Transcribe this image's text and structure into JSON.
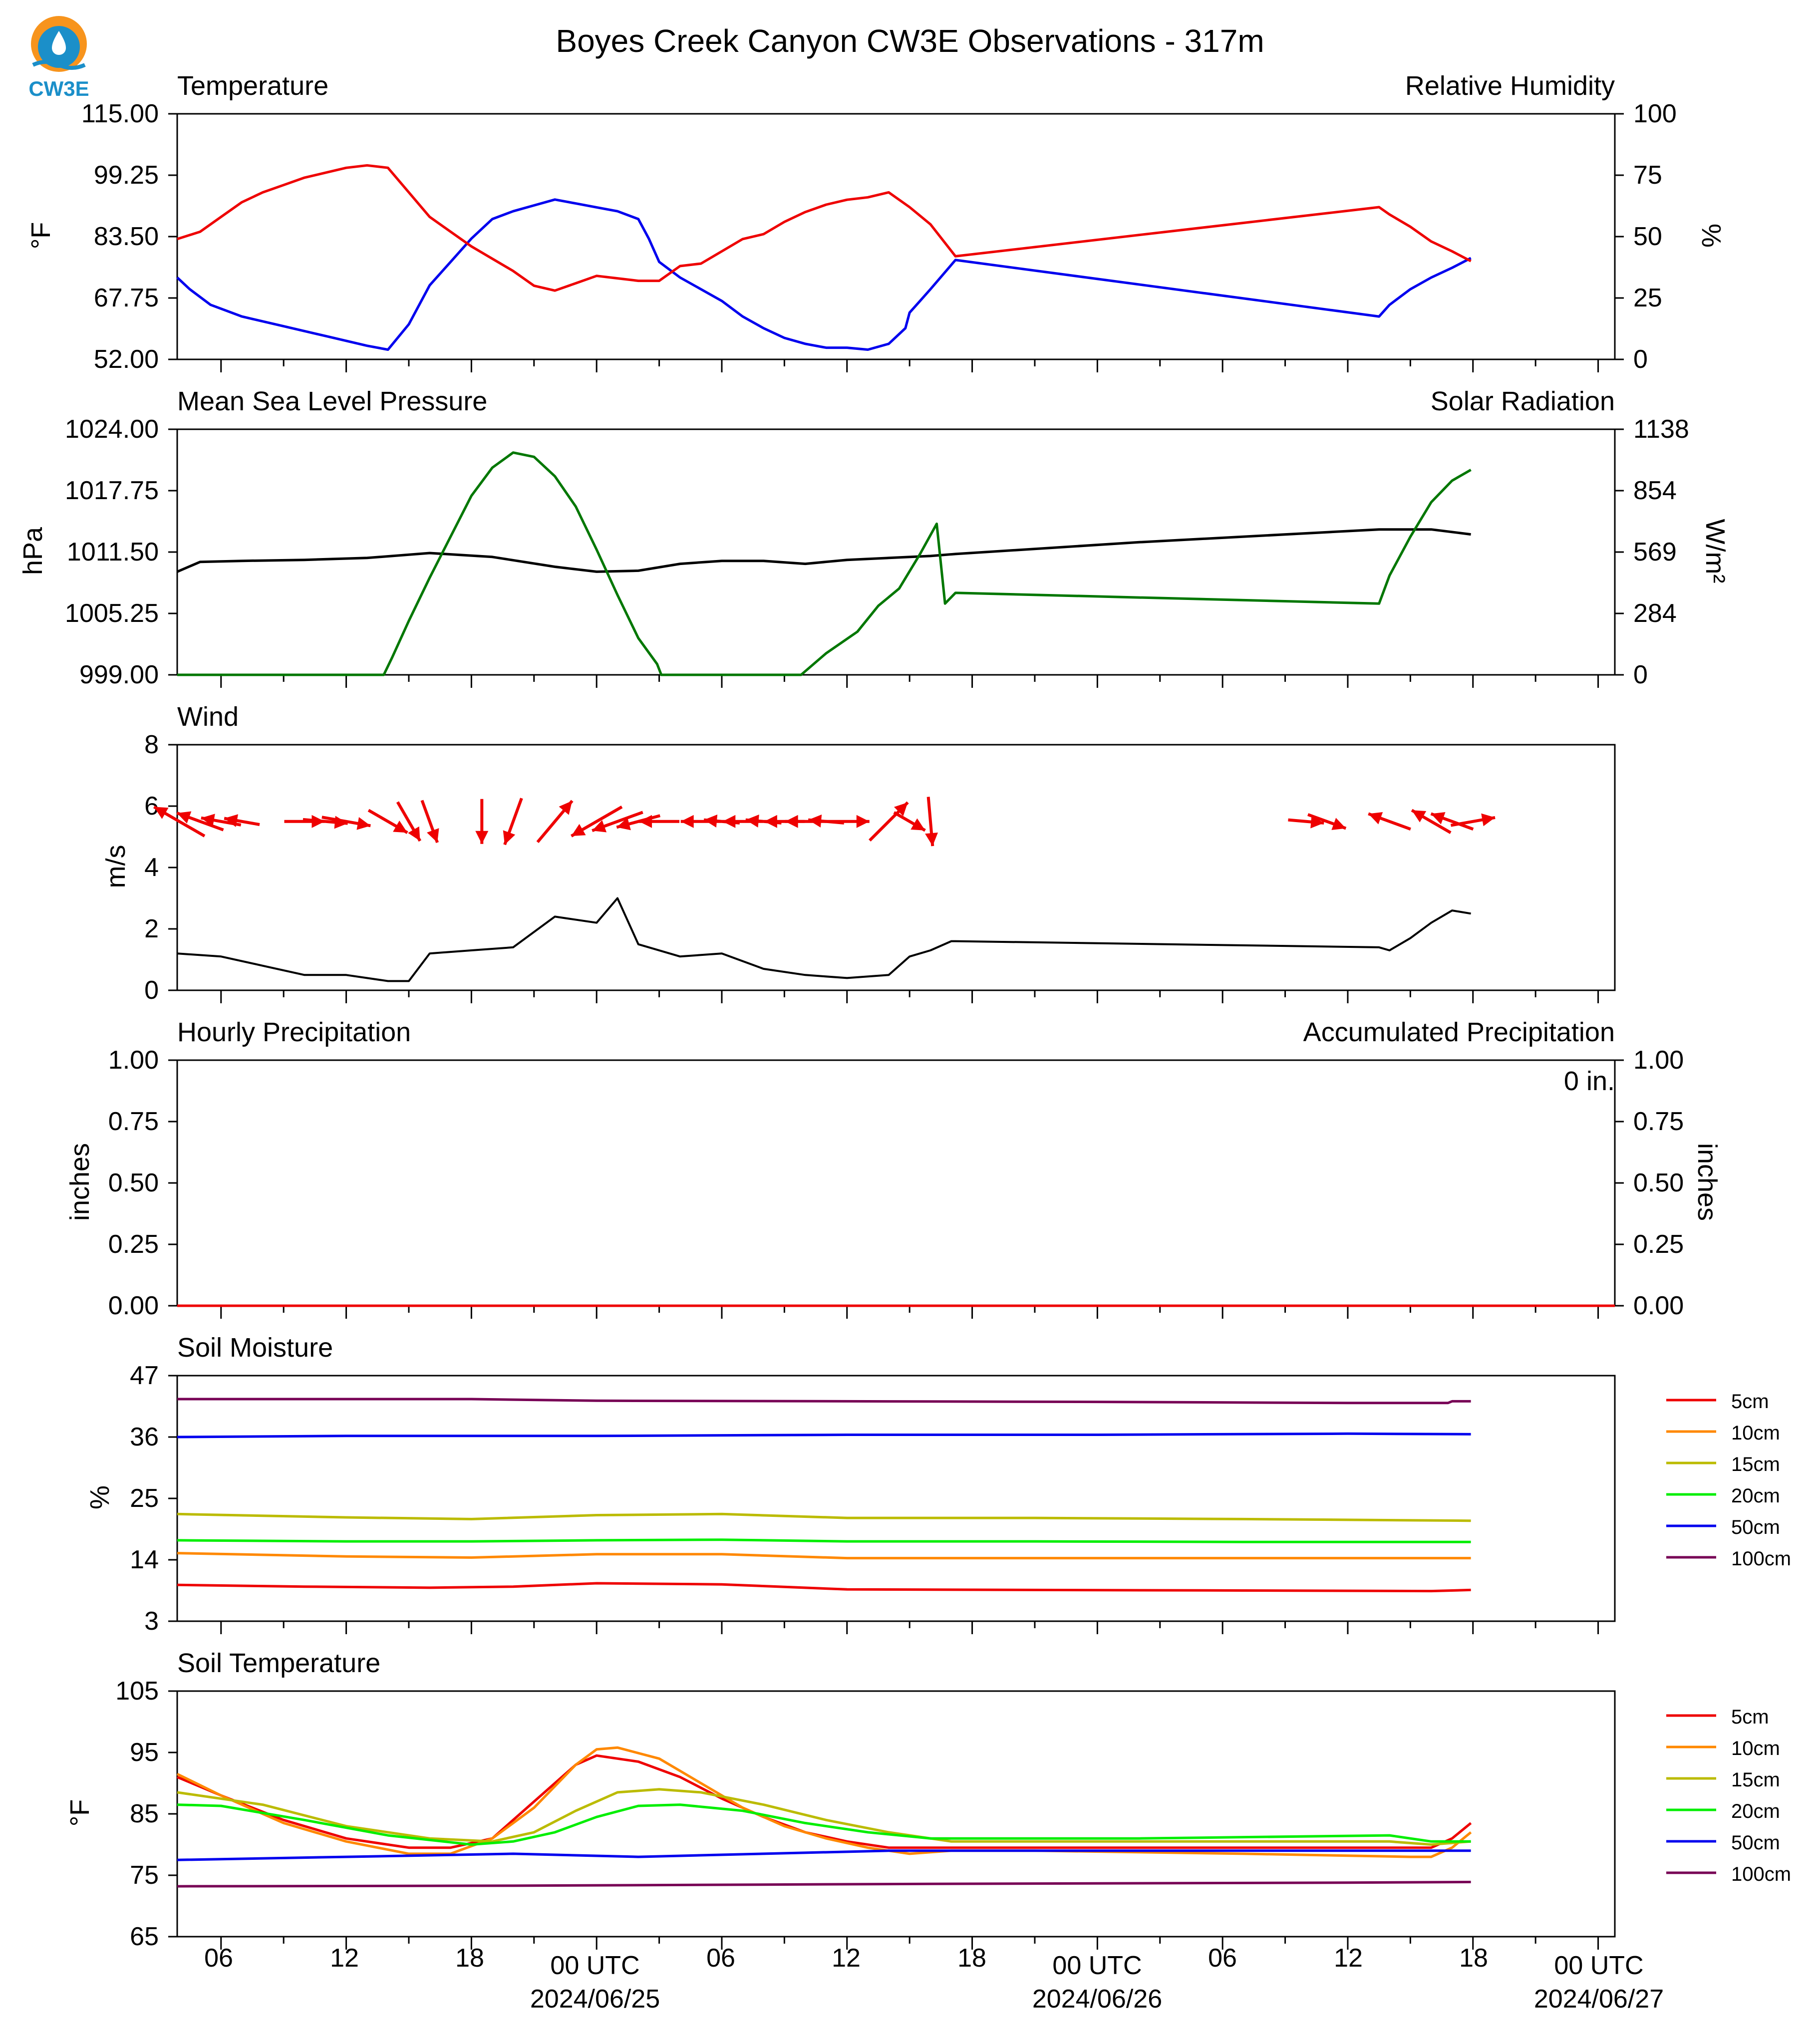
{
  "logo_text": "CW3E",
  "title": "Boyes Creek Canyon CW3E Observations - 317m",
  "colors": {
    "temperature": "#0000ee",
    "humidity": "#ee0000",
    "solar": "#007700",
    "pressure": "#000000",
    "wind": "#000000",
    "wind_arrow": "#ee0000",
    "precip_hourly": "#0000ee",
    "precip_accum": "#ee0000"
  },
  "x_axis": {
    "hour_ticks": [
      "06",
      "12",
      "18",
      "00 UTC",
      "06",
      "12",
      "18",
      "00 UTC",
      "06",
      "12",
      "18",
      "00 UTC"
    ],
    "dates": [
      "2024/06/25",
      "2024/06/26",
      "2024/06/27"
    ],
    "range_hours": [
      3.9,
      72.8
    ]
  },
  "chart_data": [
    {
      "type": "line",
      "name": "temp_rh",
      "left_title": "Temperature",
      "right_title": "Relative Humidity",
      "ylabel": "°F",
      "y2label": "%",
      "ylim": [
        52,
        115
      ],
      "y2lim": [
        0,
        100
      ],
      "yticks": [
        "115.00",
        "99.25",
        "83.50",
        "67.75",
        "52.00"
      ],
      "y2ticks": [
        "100",
        "75",
        "50",
        "25",
        "0"
      ],
      "series": [
        {
          "axis": "left",
          "color": "#0000ee",
          "x": [
            3.9,
            4.5,
            5.5,
            7,
            9,
            11,
            13,
            14,
            15,
            16,
            17,
            18,
            19,
            20,
            21,
            22,
            23,
            24,
            25,
            26,
            26.5,
            27,
            28,
            29,
            30,
            31,
            32,
            33,
            34,
            35,
            36,
            37,
            38,
            38.8,
            39,
            39.5,
            40,
            41.2,
            61.5,
            62,
            63,
            64,
            65,
            65.9
          ],
          "y": [
            73,
            70,
            66,
            63,
            60.5,
            58,
            55.5,
            54.5,
            61,
            71,
            77,
            83,
            88,
            90,
            91.5,
            93,
            92,
            91,
            90,
            88,
            83,
            77,
            73,
            70,
            67,
            63,
            60,
            57.5,
            56,
            55,
            55,
            54.5,
            56,
            60,
            64,
            67,
            70,
            77.5,
            63,
            66,
            70,
            73,
            75.5,
            78
          ]
        },
        {
          "axis": "right",
          "color": "#ee0000",
          "x": [
            3.9,
            5,
            6,
            7,
            8,
            9,
            10,
            11,
            12,
            13,
            14,
            15,
            16,
            17,
            18,
            19,
            20,
            21,
            22,
            23,
            24,
            25,
            26,
            27,
            28,
            29,
            30,
            31,
            32,
            33,
            34,
            35,
            36,
            37,
            38,
            39,
            40,
            41.2,
            61.5,
            62,
            63,
            64,
            65,
            65.9
          ],
          "y": [
            49,
            52,
            58,
            64,
            68,
            71,
            74,
            76,
            78,
            79,
            78,
            68,
            58,
            52,
            46,
            41,
            36,
            30,
            28,
            31,
            34,
            33,
            32,
            32,
            38,
            39,
            44,
            49,
            51,
            56,
            60,
            63,
            65,
            66,
            68,
            62,
            55,
            42,
            62,
            59,
            54,
            48,
            44,
            40
          ]
        }
      ]
    },
    {
      "type": "line",
      "name": "pressure_solar",
      "left_title": "Mean Sea Level Pressure",
      "right_title": "Solar Radiation",
      "ylabel": "hPa",
      "y2label": "W/m²",
      "ylim": [
        999,
        1024
      ],
      "y2lim": [
        0,
        1138
      ],
      "yticks": [
        "1024.00",
        "1017.75",
        "1011.50",
        "1005.25",
        "999.00"
      ],
      "y2ticks": [
        "1138",
        "854",
        "569",
        "284",
        "0"
      ],
      "series": [
        {
          "axis": "left",
          "color": "#000000",
          "x": [
            3.9,
            5,
            7,
            10,
            13,
            16,
            19,
            22,
            24,
            26,
            28,
            30,
            32,
            34,
            36,
            38,
            40,
            41.2,
            50,
            61.5,
            64,
            65.9
          ],
          "y": [
            1009.5,
            1010.5,
            1010.6,
            1010.7,
            1010.9,
            1011.4,
            1011.0,
            1010.0,
            1009.5,
            1009.6,
            1010.3,
            1010.6,
            1010.6,
            1010.3,
            1010.7,
            1010.9,
            1011.1,
            1011.3,
            1012.5,
            1013.8,
            1013.8,
            1013.3
          ]
        },
        {
          "axis": "right",
          "color": "#007700",
          "x": [
            3.9,
            13.8,
            14.2,
            15,
            16,
            17,
            18,
            19,
            20,
            21,
            22,
            23,
            24,
            25,
            26,
            26.9,
            27.1,
            28,
            33.8,
            35,
            36.5,
            37.5,
            38.5,
            39.5,
            40.3,
            40.7,
            41.2,
            61.5,
            62,
            63,
            64,
            65,
            65.9
          ],
          "y": [
            0,
            0,
            80,
            250,
            450,
            640,
            830,
            960,
            1030,
            1010,
            920,
            780,
            580,
            370,
            170,
            50,
            0,
            0,
            0,
            100,
            200,
            320,
            400,
            560,
            700,
            330,
            380,
            330,
            460,
            640,
            800,
            900,
            950
          ]
        }
      ]
    },
    {
      "type": "line",
      "name": "wind",
      "left_title": "Wind",
      "ylabel": "m/s",
      "ylim": [
        0,
        8
      ],
      "yticks": [
        "8",
        "6",
        "4",
        "2",
        "0"
      ],
      "series": [
        {
          "color": "#000000",
          "x": [
            3.9,
            6,
            8,
            10,
            12,
            14,
            15,
            16,
            18,
            20,
            22,
            24,
            25,
            26,
            28,
            30,
            32,
            34,
            36,
            38,
            39,
            40,
            41,
            41.2,
            61.5,
            62,
            63,
            64,
            65,
            65.9
          ],
          "y": [
            1.2,
            1.1,
            0.8,
            0.5,
            0.5,
            0.3,
            0.3,
            1.2,
            1.3,
            1.4,
            2.4,
            2.2,
            3.0,
            1.5,
            1.1,
            1.2,
            0.7,
            0.5,
            0.4,
            0.5,
            1.1,
            1.3,
            1.6,
            1.6,
            1.4,
            1.3,
            1.7,
            2.2,
            2.6,
            2.5
          ]
        }
      ],
      "wind_arrows": {
        "color": "#ee0000",
        "x": [
          4,
          5,
          6,
          7,
          10,
          11,
          12,
          14,
          15,
          16,
          18.5,
          20,
          22,
          24,
          25,
          26,
          27,
          29,
          30,
          31,
          32,
          33,
          34,
          35,
          36,
          38,
          39,
          40,
          58,
          59,
          62,
          64,
          65,
          66
        ],
        "dir_deg": [
          300,
          290,
          280,
          280,
          90,
          95,
          100,
          120,
          150,
          160,
          180,
          200,
          40,
          240,
          250,
          255,
          270,
          270,
          275,
          270,
          275,
          270,
          270,
          275,
          90,
          45,
          120,
          175,
          95,
          110,
          290,
          300,
          290,
          80
        ],
        "len": [
          1.3,
          1.1,
          0.9,
          0.8,
          0.9,
          1.0,
          1.1,
          1.0,
          1.0,
          1.0,
          1.0,
          1.1,
          1.2,
          1.3,
          1.2,
          1.0,
          0.9,
          0.9,
          0.8,
          0.9,
          0.8,
          0.9,
          0.9,
          0.8,
          1.0,
          1.2,
          0.8,
          1.1,
          0.8,
          0.9,
          1.0,
          1.0,
          1.0,
          1.0
        ]
      }
    },
    {
      "type": "line",
      "name": "precip",
      "left_title": "Hourly Precipitation",
      "right_title": "Accumulated Precipitation",
      "ylabel": "inches",
      "y2label": "inches",
      "ylim": [
        0,
        1
      ],
      "y2lim": [
        0,
        1
      ],
      "yticks": [
        "1.00",
        "0.75",
        "0.50",
        "0.25",
        "0.00"
      ],
      "y2ticks": [
        "1.00",
        "0.75",
        "0.50",
        "0.25",
        "0.00"
      ],
      "accum_label": "0 in.",
      "series": [
        {
          "color": "#ee0000",
          "x": [
            3.9,
            72.8
          ],
          "y": [
            0,
            0
          ]
        }
      ]
    },
    {
      "type": "line",
      "name": "soil_moisture",
      "left_title": "Soil Moisture",
      "ylabel": "%",
      "ylim": [
        3,
        47
      ],
      "yticks": [
        "47",
        "36",
        "25",
        "14",
        "3"
      ],
      "series": [
        {
          "name": "5cm",
          "color": "#ee0000",
          "x": [
            3.9,
            10,
            16,
            20,
            24,
            30,
            36,
            45,
            55,
            64,
            65.9
          ],
          "y": [
            9.5,
            9.2,
            9.0,
            9.2,
            9.8,
            9.6,
            8.7,
            8.6,
            8.5,
            8.4,
            8.6
          ]
        },
        {
          "name": "10cm",
          "color": "#ff8800",
          "x": [
            3.9,
            12,
            18,
            24,
            30,
            36,
            45,
            55,
            65.9
          ],
          "y": [
            15.2,
            14.6,
            14.4,
            15.0,
            15.0,
            14.3,
            14.3,
            14.3,
            14.3
          ]
        },
        {
          "name": "15cm",
          "color": "#bbbb00",
          "x": [
            3.9,
            12,
            18,
            24,
            30,
            36,
            45,
            55,
            65.9
          ],
          "y": [
            22.2,
            21.6,
            21.3,
            22.0,
            22.2,
            21.5,
            21.5,
            21.3,
            21.0
          ]
        },
        {
          "name": "20cm",
          "color": "#00ee00",
          "x": [
            3.9,
            12,
            18,
            24,
            30,
            36,
            45,
            55,
            65.9
          ],
          "y": [
            17.5,
            17.3,
            17.3,
            17.5,
            17.6,
            17.3,
            17.3,
            17.2,
            17.2
          ]
        },
        {
          "name": "50cm",
          "color": "#0000ee",
          "x": [
            3.9,
            12,
            24,
            36,
            48,
            60,
            65.9
          ],
          "y": [
            36.0,
            36.2,
            36.2,
            36.4,
            36.4,
            36.6,
            36.5
          ]
        },
        {
          "name": "100cm",
          "color": "#770055",
          "x": [
            3.9,
            12,
            18,
            24,
            36,
            48,
            60,
            64.8,
            65,
            65.9
          ],
          "y": [
            42.8,
            42.8,
            42.8,
            42.5,
            42.4,
            42.3,
            42.1,
            42.1,
            42.4,
            42.4
          ]
        }
      ]
    },
    {
      "type": "line",
      "name": "soil_temperature",
      "left_title": "Soil Temperature",
      "ylabel": "°F",
      "ylim": [
        65,
        105
      ],
      "yticks": [
        "105",
        "95",
        "85",
        "75",
        "65"
      ],
      "series": [
        {
          "name": "5cm",
          "color": "#ee0000",
          "x": [
            3.9,
            6,
            9,
            12,
            15,
            17,
            19,
            21,
            23,
            24,
            26,
            28,
            30,
            32,
            34,
            36,
            38,
            40,
            45,
            55,
            64,
            65,
            65.9
          ],
          "y": [
            91,
            88,
            84,
            81,
            79.5,
            79.5,
            81,
            87,
            93,
            94.5,
            93.5,
            91,
            87.5,
            84.5,
            82,
            80.5,
            79.5,
            79.5,
            79.5,
            79.5,
            79.5,
            81,
            83.5
          ]
        },
        {
          "name": "10cm",
          "color": "#ff8800",
          "x": [
            3.9,
            6,
            9,
            12,
            15,
            17,
            19,
            21,
            23,
            24,
            25,
            27,
            29,
            31,
            33,
            35,
            37,
            39,
            41,
            45,
            55,
            63,
            64,
            65,
            65.9
          ],
          "y": [
            91.5,
            88,
            83.5,
            80.5,
            78.5,
            78.5,
            81,
            86,
            93,
            95.5,
            95.8,
            94,
            90,
            86,
            83,
            81,
            79.5,
            78.5,
            79,
            79,
            78.5,
            78,
            78,
            79.5,
            82
          ]
        },
        {
          "name": "15cm",
          "color": "#bbbb00",
          "x": [
            3.9,
            8,
            12,
            16,
            19,
            21,
            23,
            25,
            27,
            29,
            32,
            35,
            38,
            41,
            50,
            62,
            64,
            65.9
          ],
          "y": [
            88.5,
            86.5,
            83,
            81,
            80.5,
            82,
            85.5,
            88.5,
            89,
            88.5,
            86.5,
            84,
            82,
            80.5,
            80.5,
            80.5,
            80,
            80.5
          ]
        },
        {
          "name": "20cm",
          "color": "#00ee00",
          "x": [
            3.9,
            6,
            10,
            14,
            18,
            20,
            22,
            24,
            26,
            28,
            31,
            34,
            37,
            40,
            50,
            62,
            64,
            65.9
          ],
          "y": [
            86.5,
            86.3,
            84,
            81.5,
            80,
            80.5,
            82,
            84.5,
            86.3,
            86.5,
            85.5,
            83.5,
            82,
            81,
            81,
            81.5,
            80.5,
            80.5
          ]
        },
        {
          "name": "50cm",
          "color": "#0000ee",
          "x": [
            3.9,
            12,
            20,
            26,
            32,
            38,
            50,
            62,
            65.9
          ],
          "y": [
            77.5,
            78,
            78.5,
            78,
            78.5,
            79,
            79,
            79,
            79
          ]
        },
        {
          "name": "100cm",
          "color": "#770055",
          "x": [
            3.9,
            20,
            40,
            60,
            65.9
          ],
          "y": [
            73.2,
            73.3,
            73.6,
            73.8,
            73.9
          ]
        }
      ]
    }
  ]
}
